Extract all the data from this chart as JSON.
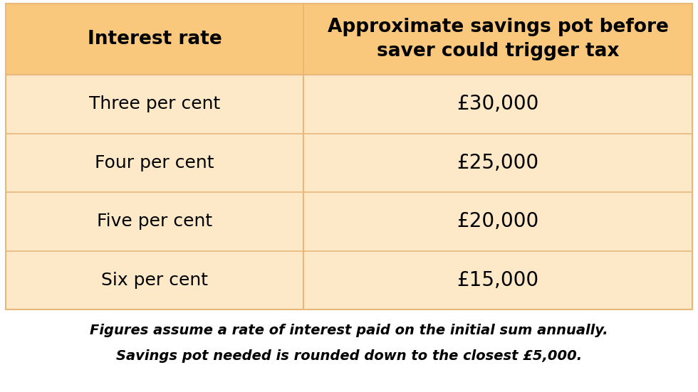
{
  "header_col1": "Interest rate",
  "header_col2": "Approximate savings pot before\nsaver could trigger tax",
  "rows": [
    [
      "Three per cent",
      "£30,000"
    ],
    [
      "Four per cent",
      "£25,000"
    ],
    [
      "Five per cent",
      "£20,000"
    ],
    [
      "Six per cent",
      "£15,000"
    ]
  ],
  "footer_line1": "Figures assume a rate of interest paid on the initial sum annually.",
  "footer_line2": "Savings pot needed is rounded down to the closest £5,000.",
  "header_bg": "#F9C87C",
  "row_bg_light": "#FDE8C8",
  "divider_color": "#E8B87A",
  "header_text_color": "#000000",
  "row_text_color": "#000000",
  "footer_text_color": "#000000",
  "bg_color": "#FFFFFF",
  "col_split": 0.435
}
